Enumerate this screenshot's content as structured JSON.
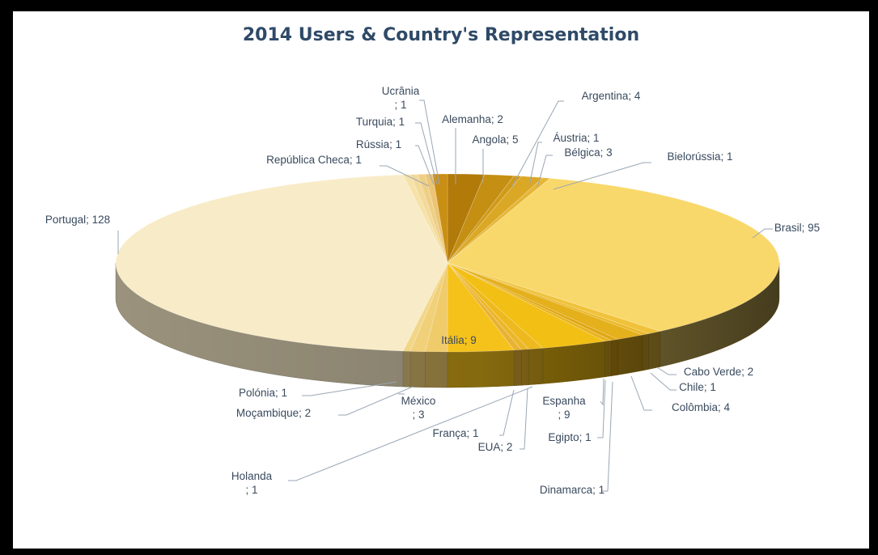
{
  "chart_data": {
    "type": "pie",
    "title": "2014 Users & Country's Representation",
    "slices": [
      {
        "label": "Angola",
        "value": 5,
        "text_lines": [
          "Angola; 5"
        ],
        "color": "#b27a09"
      },
      {
        "label": "Argentina",
        "value": 4,
        "text_lines": [
          "Argentina; 4"
        ],
        "color": "#c48f12"
      },
      {
        "label": "Áustria",
        "value": 1,
        "text_lines": [
          "Áustria; 1"
        ],
        "color": "#d09a18"
      },
      {
        "label": "Bélgica",
        "value": 3,
        "text_lines": [
          "Bélgica; 3"
        ],
        "color": "#dba826"
      },
      {
        "label": "Bielorússia",
        "value": 1,
        "text_lines": [
          "Bielorússia; 1"
        ],
        "color": "#e5b636"
      },
      {
        "label": "Brasil",
        "value": 95,
        "text_lines": [
          "Brasil; 95"
        ],
        "color": "#f9d86b"
      },
      {
        "label": "Cabo Verde",
        "value": 2,
        "text_lines": [
          "Cabo Verde; 2"
        ],
        "color": "#f0c23a"
      },
      {
        "label": "Chile",
        "value": 1,
        "text_lines": [
          "Chile; 1"
        ],
        "color": "#eab92a"
      },
      {
        "label": "Colômbia",
        "value": 4,
        "text_lines": [
          "Colômbia; 4"
        ],
        "color": "#e4b01c"
      },
      {
        "label": "Dinamarca",
        "value": 1,
        "text_lines": [
          "Dinamarca; 1"
        ],
        "color": "#dfa712"
      },
      {
        "label": "Egipto",
        "value": 1,
        "text_lines": [
          "Egipto; 1"
        ],
        "color": "#e9b422"
      },
      {
        "label": "Espanha",
        "value": 9,
        "text_lines": [
          "Espanha",
          "; 9"
        ],
        "color": "#f2bf14"
      },
      {
        "label": "EUA",
        "value": 2,
        "text_lines": [
          "EUA; 2"
        ],
        "color": "#eeb91e"
      },
      {
        "label": "França",
        "value": 1,
        "text_lines": [
          "França; 1"
        ],
        "color": "#ebb62a"
      },
      {
        "label": "Holanda",
        "value": 1,
        "text_lines": [
          "Holanda",
          "; 1"
        ],
        "color": "#e8b234"
      },
      {
        "label": "Itália",
        "value": 9,
        "text_lines": [
          "Itália; 9"
        ],
        "color": "#f5c21c"
      },
      {
        "label": "México",
        "value": 3,
        "text_lines": [
          "México",
          "; 3"
        ],
        "color": "#f0cb6a"
      },
      {
        "label": "Moçambique",
        "value": 2,
        "text_lines": [
          "Moçambique; 2"
        ],
        "color": "#f1d07a"
      },
      {
        "label": "Polónia",
        "value": 1,
        "text_lines": [
          "Polónia; 1"
        ],
        "color": "#f2d688"
      },
      {
        "label": "Portugal",
        "value": 128,
        "text_lines": [
          "Portugal; 128"
        ],
        "color": "#f8ecc8"
      },
      {
        "label": "República Checa",
        "value": 1,
        "text_lines": [
          "República Checa; 1"
        ],
        "color": "#f6e2a8"
      },
      {
        "label": "Rússia",
        "value": 1,
        "text_lines": [
          "Rússia; 1"
        ],
        "color": "#f3d99a"
      },
      {
        "label": "Turquia",
        "value": 1,
        "text_lines": [
          "Turquia; 1"
        ],
        "color": "#efcf86"
      },
      {
        "label": "Ucrânia",
        "value": 1,
        "text_lines": [
          "Ucrânia",
          "; 1"
        ],
        "color": "#ebc474"
      },
      {
        "label": "Alemanha",
        "value": 2,
        "text_lines": [
          "Alemanha; 2"
        ],
        "color": "#c98e14"
      }
    ]
  }
}
